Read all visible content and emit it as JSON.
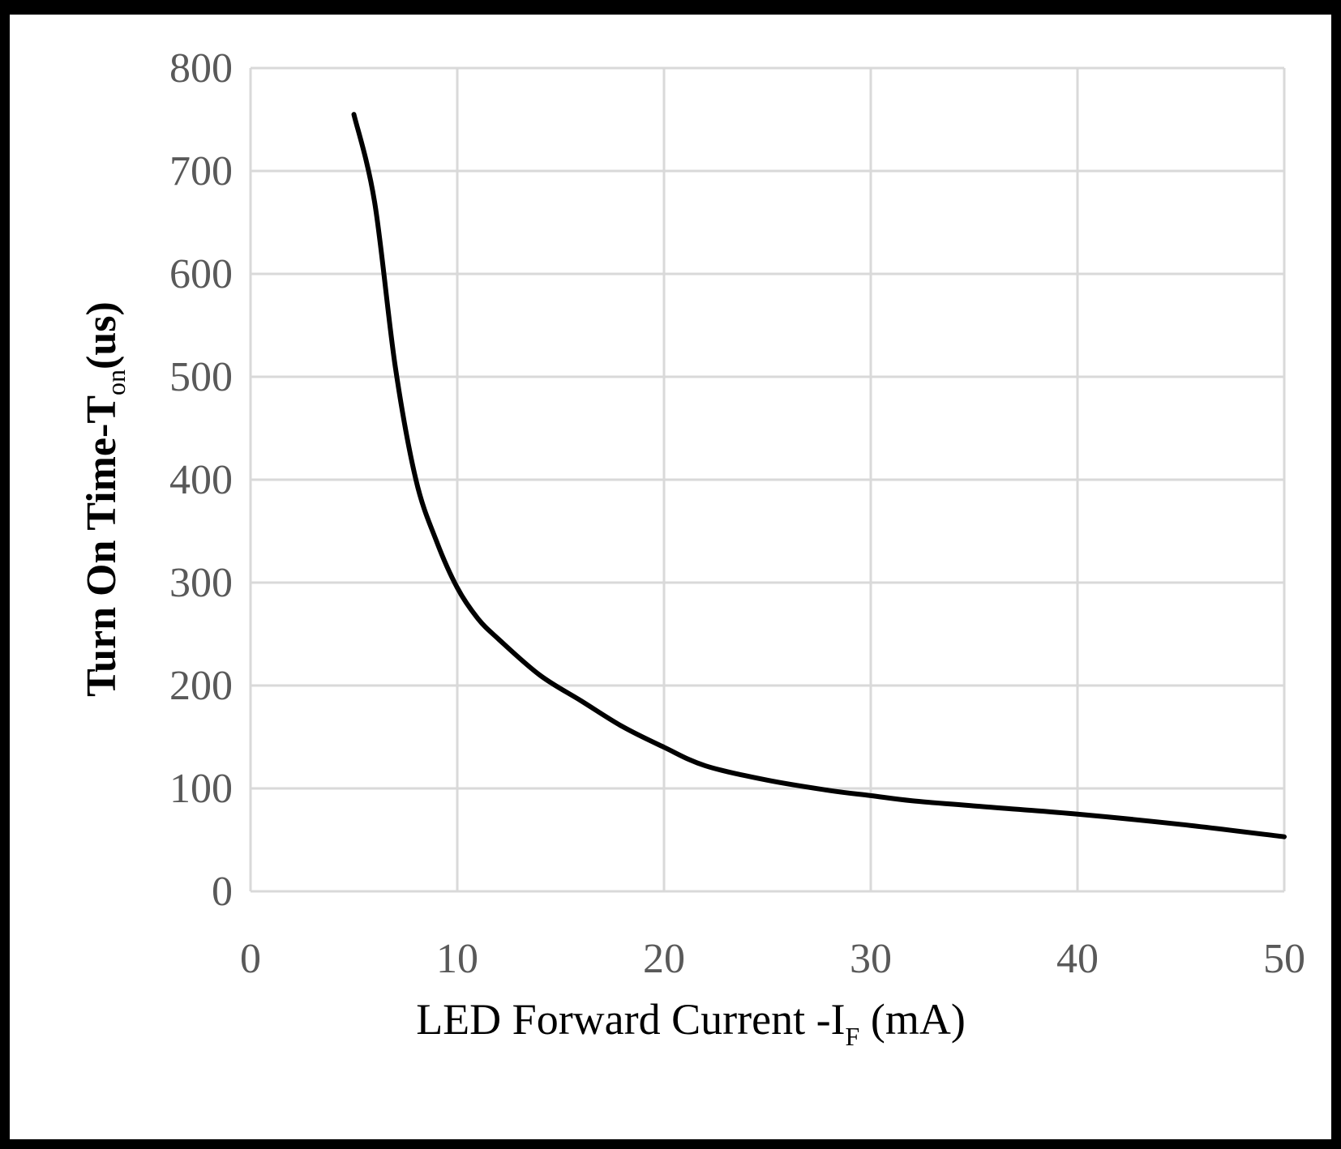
{
  "chart_data": {
    "type": "line",
    "title": "",
    "xlabel": "LED Forward Current -I",
    "xlabel_sub": "F",
    "xlabel_unit": " (mA)",
    "ylabel": "Turn On Time-T",
    "ylabel_sub": "on",
    "ylabel_unit": "(us)",
    "xlim": [
      0,
      50
    ],
    "ylim": [
      0,
      800
    ],
    "xticks": [
      0,
      10,
      20,
      30,
      40,
      50
    ],
    "yticks": [
      0,
      100,
      200,
      300,
      400,
      500,
      600,
      700,
      800
    ],
    "grid": true,
    "line_color": "#000000",
    "grid_color": "#d9d9d9",
    "series": [
      {
        "name": "Ton",
        "x": [
          5,
          6,
          7,
          8,
          9,
          10,
          11,
          12,
          14,
          16,
          18,
          20,
          22,
          25,
          28,
          30,
          32,
          35,
          40,
          45,
          50
        ],
        "y": [
          755,
          670,
          510,
          400,
          340,
          295,
          265,
          245,
          210,
          185,
          160,
          140,
          122,
          108,
          98,
          93,
          88,
          83,
          75,
          65,
          53
        ]
      }
    ]
  }
}
